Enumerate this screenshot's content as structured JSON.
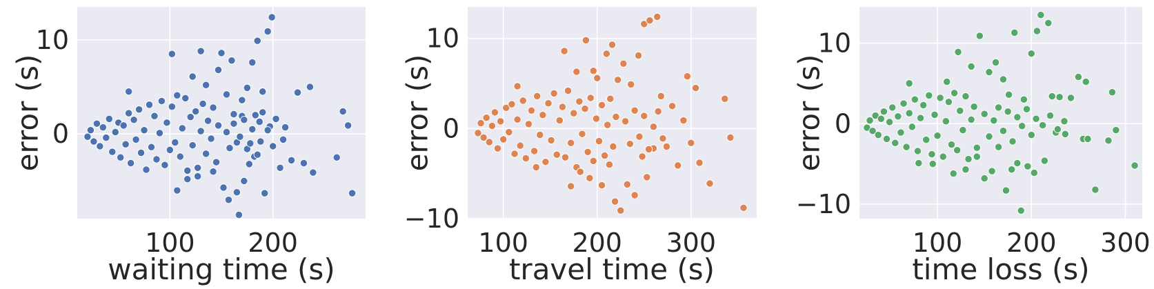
{
  "chart_data": [
    {
      "type": "scatter",
      "xlabel": "waiting time (s)",
      "ylabel": "error (s)",
      "xlim": [
        10,
        290
      ],
      "ylim": [
        -9,
        13.5
      ],
      "xticks": [
        100,
        200
      ],
      "xtick_labels": [
        "100",
        "200"
      ],
      "yticks": [
        0,
        10
      ],
      "ytick_labels": [
        "0",
        "10"
      ],
      "grid": true,
      "color": "#4c72b0",
      "points": [
        [
          20,
          -0.3
        ],
        [
          23,
          0.4
        ],
        [
          26,
          -0.8
        ],
        [
          29,
          1.1
        ],
        [
          32,
          -1.3
        ],
        [
          35,
          0.7
        ],
        [
          38,
          -0.4
        ],
        [
          41,
          1.6
        ],
        [
          44,
          -1.9
        ],
        [
          47,
          0.2
        ],
        [
          50,
          1.2
        ],
        [
          52,
          -2.5
        ],
        [
          55,
          0.9
        ],
        [
          57,
          -1.1
        ],
        [
          60,
          2.2
        ],
        [
          62,
          -3.1
        ],
        [
          65,
          1.5
        ],
        [
          67,
          -0.6
        ],
        [
          70,
          2.6
        ],
        [
          72,
          -2.0
        ],
        [
          75,
          0.4
        ],
        [
          77,
          -3.8
        ],
        [
          80,
          3.1
        ],
        [
          82,
          -1.4
        ],
        [
          85,
          1.9
        ],
        [
          87,
          -2.7
        ],
        [
          90,
          0.1
        ],
        [
          92,
          3.5
        ],
        [
          95,
          -3.3
        ],
        [
          97,
          1.2
        ],
        [
          100,
          -1.7
        ],
        [
          102,
          2.9
        ],
        [
          105,
          -0.9
        ],
        [
          107,
          4.1
        ],
        [
          110,
          -2.4
        ],
        [
          112,
          0.6
        ],
        [
          115,
          3.8
        ],
        [
          117,
          -3.9
        ],
        [
          120,
          1.8
        ],
        [
          122,
          -1.2
        ],
        [
          125,
          2.4
        ],
        [
          127,
          -4.5
        ],
        [
          130,
          0.3
        ],
        [
          132,
          3.2
        ],
        [
          135,
          -2.1
        ],
        [
          137,
          1.4
        ],
        [
          140,
          -0.5
        ],
        [
          142,
          2.8
        ],
        [
          145,
          -3.0
        ],
        [
          147,
          0.9
        ],
        [
          60,
          4.5
        ],
        [
          102,
          8.5
        ],
        [
          107,
          -6.0
        ],
        [
          117,
          -4.8
        ],
        [
          122,
          6.1
        ],
        [
          127,
          -3.6
        ],
        [
          130,
          8.8
        ],
        [
          135,
          5.2
        ],
        [
          142,
          -4.0
        ],
        [
          147,
          6.8
        ],
        [
          150,
          8.6
        ],
        [
          152,
          -5.7
        ],
        [
          155,
          4.2
        ],
        [
          157,
          -7.0
        ],
        [
          160,
          7.8
        ],
        [
          162,
          2.1
        ],
        [
          165,
          -6.2
        ],
        [
          167,
          -8.6
        ],
        [
          170,
          3.6
        ],
        [
          172,
          -5.0
        ],
        [
          175,
          4.9
        ],
        [
          177,
          -3.2
        ],
        [
          180,
          7.6
        ],
        [
          182,
          -2.4
        ],
        [
          185,
          9.9
        ],
        [
          187,
          1.3
        ],
        [
          190,
          4.5
        ],
        [
          192,
          -6.3
        ],
        [
          195,
          10.9
        ],
        [
          197,
          0.8
        ],
        [
          199,
          12.4
        ],
        [
          203,
          1.6
        ],
        [
          207,
          -3.6
        ],
        [
          212,
          0.7
        ],
        [
          218,
          -2.8
        ],
        [
          224,
          4.4
        ],
        [
          230,
          -3.1
        ],
        [
          236,
          5.0
        ],
        [
          239,
          -4.1
        ],
        [
          262,
          -2.5
        ],
        [
          268,
          2.4
        ],
        [
          273,
          0.9
        ],
        [
          277,
          -6.3
        ],
        [
          165,
          -0.9
        ],
        [
          170,
          1.9
        ],
        [
          175,
          -1.6
        ],
        [
          180,
          0.5
        ],
        [
          185,
          -2.2
        ],
        [
          190,
          2.3
        ],
        [
          210,
          -0.6
        ],
        [
          155,
          0.2
        ],
        [
          158,
          -1.5
        ],
        [
          162,
          1.1
        ],
        [
          168,
          -0.3
        ],
        [
          172,
          1.5
        ],
        [
          178,
          -1.0
        ],
        [
          183,
          2.0
        ],
        [
          188,
          -0.8
        ],
        [
          195,
          0.4
        ],
        [
          200,
          -1.3
        ]
      ]
    },
    {
      "type": "scatter",
      "xlabel": "travel time (s)",
      "ylabel": "error (s)",
      "xlim": [
        62,
        370
      ],
      "ylim": [
        -10,
        13.5
      ],
      "xticks": [
        100,
        200,
        300
      ],
      "xtick_labels": [
        "100",
        "200",
        "300"
      ],
      "yticks": [
        -10,
        0,
        10
      ],
      "ytick_labels": [
        "−10",
        "0",
        "10"
      ],
      "grid": true,
      "color": "#dd8452",
      "points": [
        [
          73,
          -0.5
        ],
        [
          76,
          0.6
        ],
        [
          79,
          -1.0
        ],
        [
          82,
          1.2
        ],
        [
          85,
          -1.5
        ],
        [
          88,
          0.3
        ],
        [
          91,
          1.8
        ],
        [
          94,
          -2.2
        ],
        [
          97,
          0.8
        ],
        [
          100,
          -1.2
        ],
        [
          103,
          2.3
        ],
        [
          106,
          -0.4
        ],
        [
          109,
          2.7
        ],
        [
          112,
          -2.8
        ],
        [
          115,
          1.0
        ],
        [
          118,
          -1.9
        ],
        [
          121,
          3.1
        ],
        [
          124,
          -3.3
        ],
        [
          127,
          0.5
        ],
        [
          130,
          2.0
        ],
        [
          133,
          -2.5
        ],
        [
          136,
          3.6
        ],
        [
          139,
          -0.7
        ],
        [
          142,
          1.5
        ],
        [
          145,
          -3.7
        ],
        [
          148,
          2.8
        ],
        [
          151,
          -1.3
        ],
        [
          154,
          3.9
        ],
        [
          157,
          -2.9
        ],
        [
          160,
          0.9
        ],
        [
          163,
          2.4
        ],
        [
          166,
          -3.2
        ],
        [
          169,
          4.2
        ],
        [
          172,
          -1.6
        ],
        [
          175,
          1.7
        ],
        [
          178,
          -4.3
        ],
        [
          181,
          3.0
        ],
        [
          184,
          -0.6
        ],
        [
          187,
          2.2
        ],
        [
          190,
          -2.6
        ],
        [
          193,
          3.4
        ],
        [
          196,
          -3.6
        ],
        [
          199,
          1.1
        ],
        [
          202,
          -1.4
        ],
        [
          205,
          2.6
        ],
        [
          208,
          -3.0
        ],
        [
          211,
          0.4
        ],
        [
          214,
          3.3
        ],
        [
          217,
          -2.0
        ],
        [
          220,
          1.3
        ],
        [
          115,
          4.7
        ],
        [
          135,
          -4.3
        ],
        [
          165,
          8.6
        ],
        [
          172,
          -6.4
        ],
        [
          178,
          6.3
        ],
        [
          182,
          -4.8
        ],
        [
          188,
          9.8
        ],
        [
          192,
          -5.5
        ],
        [
          196,
          6.4
        ],
        [
          200,
          5.6
        ],
        [
          205,
          -6.3
        ],
        [
          210,
          8.3
        ],
        [
          213,
          -4.0
        ],
        [
          216,
          9.3
        ],
        [
          219,
          -8.1
        ],
        [
          222,
          5.4
        ],
        [
          225,
          -9.1
        ],
        [
          228,
          7.2
        ],
        [
          232,
          -6.2
        ],
        [
          236,
          4.9
        ],
        [
          240,
          -7.4
        ],
        [
          244,
          8.1
        ],
        [
          248,
          -3.1
        ],
        [
          250,
          11.6
        ],
        [
          253,
          -5.4
        ],
        [
          256,
          12.0
        ],
        [
          260,
          -2.2
        ],
        [
          264,
          12.4
        ],
        [
          268,
          3.6
        ],
        [
          274,
          -2.0
        ],
        [
          280,
          2.5
        ],
        [
          286,
          -4.1
        ],
        [
          292,
          0.9
        ],
        [
          296,
          5.8
        ],
        [
          300,
          -1.6
        ],
        [
          305,
          4.5
        ],
        [
          309,
          -3.8
        ],
        [
          320,
          -6.1
        ],
        [
          336,
          3.3
        ],
        [
          342,
          -1.0
        ],
        [
          356,
          -8.8
        ],
        [
          230,
          0.8
        ],
        [
          235,
          -1.7
        ],
        [
          240,
          2.0
        ],
        [
          245,
          -0.9
        ],
        [
          250,
          1.4
        ],
        [
          255,
          -2.3
        ],
        [
          260,
          0.2
        ],
        [
          265,
          1.9
        ],
        [
          270,
          -1.1
        ]
      ]
    },
    {
      "type": "scatter",
      "xlabel": "time loss (s)",
      "ylabel": "error (s)",
      "xlim": [
        17,
        318
      ],
      "ylim": [
        -11.8,
        14.5
      ],
      "xticks": [
        100,
        200,
        300
      ],
      "xtick_labels": [
        "100",
        "200",
        "300"
      ],
      "yticks": [
        -10,
        0,
        10
      ],
      "ytick_labels": [
        "−10",
        "0",
        "10"
      ],
      "grid": true,
      "color": "#55a868",
      "points": [
        [
          25,
          -0.5
        ],
        [
          28,
          0.4
        ],
        [
          31,
          -0.9
        ],
        [
          34,
          1.0
        ],
        [
          37,
          -1.4
        ],
        [
          40,
          0.6
        ],
        [
          43,
          1.5
        ],
        [
          46,
          -1.9
        ],
        [
          49,
          0.2
        ],
        [
          52,
          2.0
        ],
        [
          55,
          -2.4
        ],
        [
          58,
          0.9
        ],
        [
          61,
          -1.1
        ],
        [
          64,
          2.5
        ],
        [
          67,
          -2.9
        ],
        [
          70,
          1.3
        ],
        [
          73,
          -0.4
        ],
        [
          76,
          3.0
        ],
        [
          79,
          -3.4
        ],
        [
          82,
          0.7
        ],
        [
          85,
          2.3
        ],
        [
          88,
          -2.0
        ],
        [
          91,
          3.5
        ],
        [
          94,
          -3.8
        ],
        [
          97,
          1.1
        ],
        [
          100,
          -1.5
        ],
        [
          103,
          3.2
        ],
        [
          106,
          -4.1
        ],
        [
          109,
          0.3
        ],
        [
          112,
          2.7
        ],
        [
          115,
          -2.6
        ],
        [
          118,
          3.8
        ],
        [
          121,
          -3.3
        ],
        [
          124,
          1.6
        ],
        [
          127,
          -0.8
        ],
        [
          130,
          3.4
        ],
        [
          133,
          -4.4
        ],
        [
          136,
          0.5
        ],
        [
          139,
          2.1
        ],
        [
          142,
          -3.0
        ],
        [
          70,
          5.0
        ],
        [
          80,
          -4.9
        ],
        [
          95,
          -5.0
        ],
        [
          110,
          5.2
        ],
        [
          117,
          -6.2
        ],
        [
          122,
          8.9
        ],
        [
          130,
          -5.7
        ],
        [
          136,
          7.1
        ],
        [
          142,
          -4.1
        ],
        [
          145,
          10.9
        ],
        [
          150,
          -6.8
        ],
        [
          155,
          6.4
        ],
        [
          158,
          -5.9
        ],
        [
          162,
          7.6
        ],
        [
          165,
          -2.9
        ],
        [
          170,
          5.5
        ],
        [
          173,
          -8.3
        ],
        [
          176,
          3.6
        ],
        [
          179,
          -5.7
        ],
        [
          182,
          11.3
        ],
        [
          185,
          -4.9
        ],
        [
          189,
          -10.8
        ],
        [
          192,
          3.0
        ],
        [
          196,
          -5.3
        ],
        [
          200,
          8.7
        ],
        [
          203,
          -6.1
        ],
        [
          206,
          11.5
        ],
        [
          210,
          13.5
        ],
        [
          214,
          -4.6
        ],
        [
          218,
          12.5
        ],
        [
          222,
          3.4
        ],
        [
          226,
          -1.1
        ],
        [
          230,
          3.3
        ],
        [
          236,
          -1.3
        ],
        [
          242,
          3.2
        ],
        [
          250,
          5.8
        ],
        [
          255,
          -1.9
        ],
        [
          258,
          5.2
        ],
        [
          260,
          -1.9
        ],
        [
          268,
          -8.2
        ],
        [
          282,
          -2.1
        ],
        [
          286,
          3.9
        ],
        [
          290,
          -0.8
        ],
        [
          310,
          -5.2
        ],
        [
          150,
          1.2
        ],
        [
          155,
          -1.6
        ],
        [
          160,
          0.4
        ],
        [
          165,
          2.0
        ],
        [
          170,
          -0.9
        ],
        [
          175,
          1.5
        ],
        [
          180,
          -2.2
        ],
        [
          185,
          0.8
        ],
        [
          190,
          -0.3
        ],
        [
          195,
          1.8
        ],
        [
          200,
          -1.4
        ],
        [
          205,
          0.6
        ],
        [
          212,
          -0.2
        ],
        [
          220,
          1.0
        ],
        [
          228,
          -0.7
        ],
        [
          235,
          0.3
        ]
      ]
    }
  ]
}
